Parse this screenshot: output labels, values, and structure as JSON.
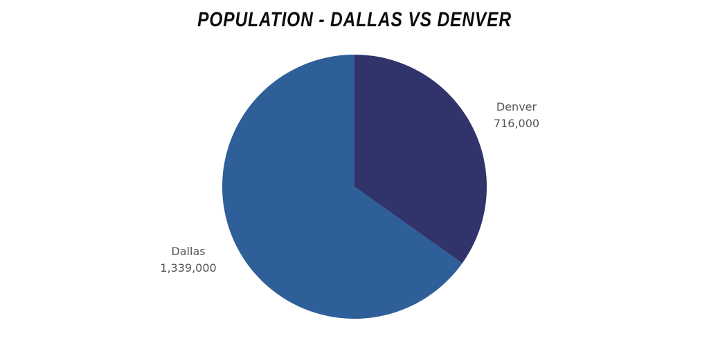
{
  "chart_data": {
    "type": "pie",
    "title": "POPULATION - DALLAS VS DENVER",
    "categories": [
      "Denver",
      "Dallas"
    ],
    "values": [
      716000,
      1339000
    ],
    "value_labels": [
      "716,000",
      "1,339,000"
    ],
    "colors": [
      "#31336b",
      "#2e5f98"
    ],
    "start_angle": "12 o'clock, clockwise",
    "legend": "none (direct labels)"
  },
  "title": "POPULATION - DALLAS VS DENVER",
  "labels": {
    "denver": {
      "name": "Denver",
      "value": "716,000"
    },
    "dallas": {
      "name": "Dallas",
      "value": "1,339,000"
    }
  }
}
